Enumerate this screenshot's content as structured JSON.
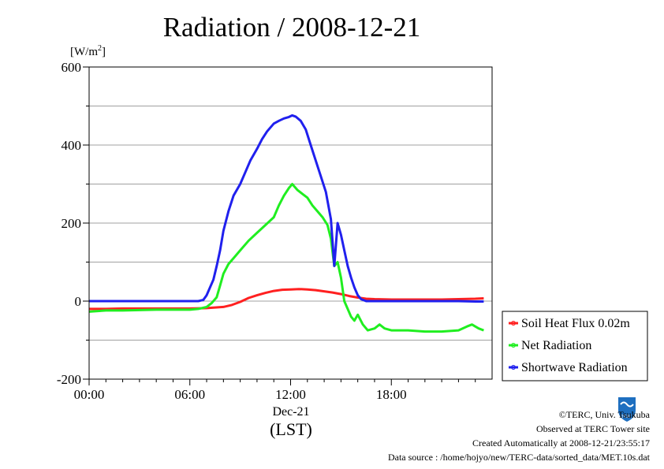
{
  "chart_data": {
    "type": "line",
    "title": "Radiation / 2008-12-21",
    "y_unit": "[W/m2]",
    "y_unit_base": "[W/m",
    "y_unit_sup": "2",
    "y_unit_close": "]",
    "ylim": [
      -200,
      600
    ],
    "yticks": [
      -200,
      0,
      200,
      400,
      600
    ],
    "ytick_labels": [
      "-200",
      "0",
      "200",
      "400",
      "600"
    ],
    "xlim": [
      0,
      24
    ],
    "xticks": [
      0,
      6,
      12,
      18
    ],
    "xtick_labels": [
      "00:00",
      "06:00",
      "12:00",
      "18:00"
    ],
    "x_date_label": "Dec-21",
    "xlabel": "(LST)",
    "grid": "horizontal",
    "legend_position": "right",
    "series": [
      {
        "name": "Soil Heat Flux 0.02m",
        "color": "#ff2020",
        "x": [
          0,
          1,
          2,
          3,
          4,
          5,
          6,
          7,
          8,
          8.5,
          9,
          9.5,
          10,
          10.5,
          11,
          11.5,
          12,
          12.5,
          13,
          13.5,
          14,
          14.5,
          15,
          15.5,
          16,
          16.5,
          17,
          18,
          19,
          20,
          21,
          22,
          23,
          23.5
        ],
        "y": [
          -20,
          -20,
          -19,
          -19,
          -19,
          -19,
          -19,
          -18,
          -15,
          -10,
          -2,
          8,
          15,
          21,
          26,
          29,
          30,
          31,
          30,
          28,
          25,
          22,
          18,
          13,
          9,
          6,
          5,
          4,
          4,
          4,
          4,
          5,
          6,
          7
        ]
      },
      {
        "name": "Net Radiation",
        "color": "#20ee20",
        "x": [
          0,
          1,
          2,
          3,
          4,
          5,
          6,
          6.5,
          7,
          7.3,
          7.6,
          7.8,
          8,
          8.3,
          8.6,
          9,
          9.5,
          10,
          10.5,
          11,
          11.3,
          11.6,
          11.9,
          12.1,
          12.4,
          12.7,
          13,
          13.3,
          13.6,
          13.9,
          14.2,
          14.4,
          14.6,
          14.8,
          15,
          15.2,
          15.4,
          15.6,
          15.8,
          16,
          16.3,
          16.6,
          17,
          17.3,
          17.6,
          18,
          19,
          20,
          21,
          22,
          22.5,
          22.8,
          23,
          23.2,
          23.5
        ],
        "y": [
          -27,
          -24,
          -24,
          -23,
          -22,
          -22,
          -22,
          -20,
          -15,
          -5,
          10,
          40,
          70,
          95,
          110,
          130,
          155,
          175,
          195,
          215,
          245,
          270,
          290,
          300,
          285,
          275,
          265,
          245,
          230,
          215,
          195,
          160,
          90,
          100,
          60,
          0,
          -20,
          -40,
          -50,
          -35,
          -60,
          -75,
          -70,
          -60,
          -70,
          -75,
          -75,
          -78,
          -78,
          -75,
          -65,
          -60,
          -65,
          -70,
          -75
        ]
      },
      {
        "name": "Shortwave Radiation",
        "color": "#2020ee",
        "x": [
          0,
          1,
          2,
          3,
          4,
          5,
          6,
          6.5,
          6.8,
          7,
          7.2,
          7.4,
          7.6,
          7.8,
          8,
          8.3,
          8.6,
          9,
          9.3,
          9.6,
          10,
          10.3,
          10.6,
          11,
          11.3,
          11.6,
          11.9,
          12.1,
          12.3,
          12.6,
          12.9,
          13.2,
          13.5,
          13.8,
          14.1,
          14.4,
          14.6,
          14.8,
          15,
          15.2,
          15.4,
          15.6,
          15.8,
          16,
          16.2,
          16.5,
          17,
          18,
          19,
          20,
          21,
          22,
          23,
          23.5
        ],
        "y": [
          0,
          0,
          0,
          0,
          0,
          0,
          0,
          0,
          3,
          15,
          35,
          55,
          90,
          130,
          180,
          230,
          270,
          300,
          330,
          360,
          390,
          415,
          435,
          455,
          462,
          468,
          472,
          476,
          473,
          462,
          440,
          400,
          360,
          320,
          280,
          210,
          90,
          200,
          170,
          130,
          90,
          60,
          35,
          15,
          5,
          0,
          0,
          0,
          0,
          0,
          0,
          0,
          -1,
          -1
        ]
      }
    ]
  },
  "footer": {
    "copyright": "©TERC, Univ. Tsukuba",
    "observed": "Observed at TERC Tower site",
    "created": "Created Automatically at 2008-12-21/23:55:17",
    "source": "Data source : /home/hojyo/new/TERC-data/sorted_data/MET.10s.dat",
    "logo_text": "TERC"
  }
}
